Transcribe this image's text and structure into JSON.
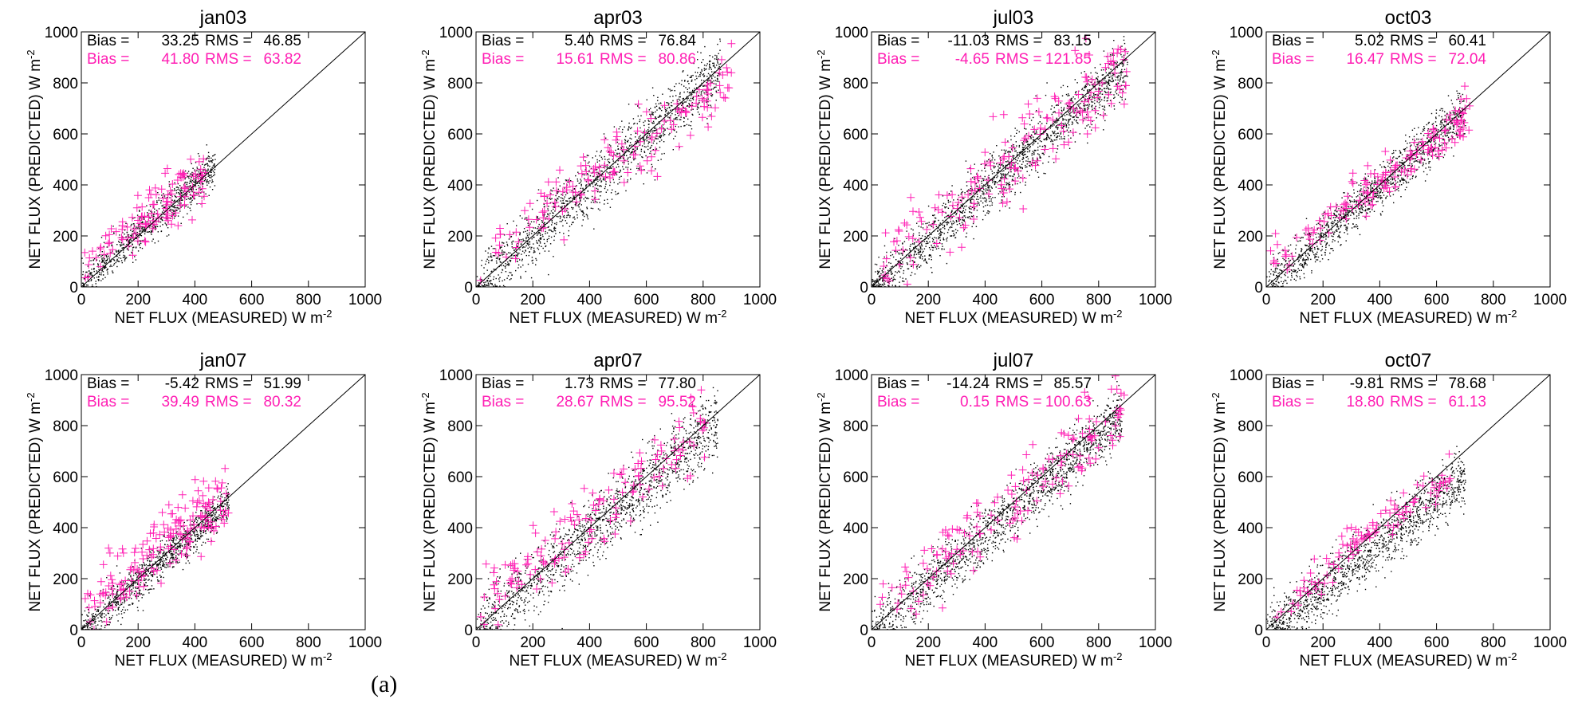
{
  "figure": {
    "caption_mark": "(a)",
    "colors": {
      "all_points": "#000000",
      "subset_points": "#ff1fb4",
      "one_to_one_line": "#000000"
    }
  },
  "chart_data": [
    {
      "type": "scatter",
      "title": "jan03",
      "xlabel": "NET FLUX (MEASURED) W m",
      "xlabel_sup": "-2",
      "ylabel": "NET FLUX (PREDICTED) W m",
      "ylabel_sup": "-2",
      "xlim": [
        0,
        1000
      ],
      "ylim": [
        0,
        1000
      ],
      "ticks": [
        0,
        200,
        400,
        600,
        800,
        1000
      ],
      "grid": false,
      "reference_line": {
        "from": [
          0,
          0
        ],
        "to": [
          1000,
          1000
        ]
      },
      "stats": [
        {
          "bias_label": "Bias =",
          "bias": "33.25",
          "rms_label": "RMS =",
          "rms": "46.85",
          "color": "#000000"
        },
        {
          "bias_label": "Bias =",
          "bias": "41.80",
          "rms_label": "RMS =",
          "rms": "63.82",
          "color": "#ff1fb4"
        }
      ],
      "series": [
        {
          "marker": "dot",
          "color": "#000000",
          "x_range": [
            0,
            470
          ],
          "slope": 1.0,
          "offset": 10,
          "spread": 38,
          "count": 900
        },
        {
          "marker": "plus",
          "color": "#ff1fb4",
          "x_range": [
            10,
            440
          ],
          "slope": 0.85,
          "offset": 75,
          "spread": 55,
          "count": 120
        }
      ]
    },
    {
      "type": "scatter",
      "title": "apr03",
      "xlabel": "NET FLUX (MEASURED) W m",
      "xlabel_sup": "-2",
      "ylabel": "NET FLUX (PREDICTED) W m",
      "ylabel_sup": "-2",
      "xlim": [
        0,
        1000
      ],
      "ylim": [
        0,
        1000
      ],
      "ticks": [
        0,
        200,
        400,
        600,
        800,
        1000
      ],
      "grid": false,
      "reference_line": {
        "from": [
          0,
          0
        ],
        "to": [
          1000,
          1000
        ]
      },
      "stats": [
        {
          "bias_label": "Bias =",
          "bias": "5.40",
          "rms_label": "RMS =",
          "rms": "76.84",
          "color": "#000000"
        },
        {
          "bias_label": "Bias =",
          "bias": "15.61",
          "rms_label": "RMS =",
          "rms": "80.86",
          "color": "#ff1fb4"
        }
      ],
      "series": [
        {
          "marker": "dot",
          "color": "#000000",
          "x_range": [
            0,
            860
          ],
          "slope": 0.98,
          "offset": 5,
          "spread": 60,
          "count": 1500
        },
        {
          "marker": "plus",
          "color": "#ff1fb4",
          "x_range": [
            10,
            900
          ],
          "slope": 0.82,
          "offset": 90,
          "spread": 60,
          "count": 150
        }
      ]
    },
    {
      "type": "scatter",
      "title": "jul03",
      "xlabel": "NET FLUX (MEASURED) W m",
      "xlabel_sup": "-2",
      "ylabel": "NET FLUX (PREDICTED) W m",
      "ylabel_sup": "-2",
      "xlim": [
        0,
        1000
      ],
      "ylim": [
        0,
        1000
      ],
      "ticks": [
        0,
        200,
        400,
        600,
        800,
        1000
      ],
      "grid": false,
      "reference_line": {
        "from": [
          0,
          0
        ],
        "to": [
          1000,
          1000
        ]
      },
      "stats": [
        {
          "bias_label": "Bias =",
          "bias": "-11.03",
          "rms_label": "RMS =",
          "rms": "83.15",
          "color": "#000000"
        },
        {
          "bias_label": "Bias =",
          "bias": "-4.65",
          "rms_label": "RMS =",
          "rms": "121.85",
          "color": "#ff1fb4"
        }
      ],
      "series": [
        {
          "marker": "dot",
          "color": "#000000",
          "x_range": [
            0,
            900
          ],
          "slope": 0.98,
          "offset": -10,
          "spread": 55,
          "count": 1700
        },
        {
          "marker": "plus",
          "color": "#ff1fb4",
          "x_range": [
            20,
            900
          ],
          "slope": 0.9,
          "offset": 60,
          "spread": 85,
          "count": 170
        }
      ]
    },
    {
      "type": "scatter",
      "title": "oct03",
      "xlabel": "NET FLUX (MEASURED) W m",
      "xlabel_sup": "-2",
      "ylabel": "NET FLUX (PREDICTED) W m",
      "ylabel_sup": "-2",
      "xlim": [
        0,
        1000
      ],
      "ylim": [
        0,
        1000
      ],
      "ticks": [
        0,
        200,
        400,
        600,
        800,
        1000
      ],
      "grid": false,
      "reference_line": {
        "from": [
          0,
          0
        ],
        "to": [
          1000,
          1000
        ]
      },
      "stats": [
        {
          "bias_label": "Bias =",
          "bias": "5.02",
          "rms_label": "RMS =",
          "rms": "60.41",
          "color": "#000000"
        },
        {
          "bias_label": "Bias =",
          "bias": "16.47",
          "rms_label": "RMS =",
          "rms": "72.04",
          "color": "#ff1fb4"
        }
      ],
      "series": [
        {
          "marker": "dot",
          "color": "#000000",
          "x_range": [
            0,
            700
          ],
          "slope": 0.97,
          "offset": 8,
          "spread": 45,
          "count": 1300
        },
        {
          "marker": "plus",
          "color": "#ff1fb4",
          "x_range": [
            10,
            720
          ],
          "slope": 0.85,
          "offset": 75,
          "spread": 45,
          "count": 150
        }
      ]
    },
    {
      "type": "scatter",
      "title": "jan07",
      "xlabel": "NET FLUX (MEASURED) W m",
      "xlabel_sup": "-2",
      "ylabel": "NET FLUX (PREDICTED) W m",
      "ylabel_sup": "-2",
      "xlim": [
        0,
        1000
      ],
      "ylim": [
        0,
        1000
      ],
      "ticks": [
        0,
        200,
        400,
        600,
        800,
        1000
      ],
      "grid": false,
      "reference_line": {
        "from": [
          0,
          0
        ],
        "to": [
          1000,
          1000
        ]
      },
      "stats": [
        {
          "bias_label": "Bias =",
          "bias": "-5.42",
          "rms_label": "RMS =",
          "rms": "51.99",
          "color": "#000000"
        },
        {
          "bias_label": "Bias =",
          "bias": "39.49",
          "rms_label": "RMS =",
          "rms": "80.32",
          "color": "#ff1fb4"
        }
      ],
      "series": [
        {
          "marker": "dot",
          "color": "#000000",
          "x_range": [
            0,
            520
          ],
          "slope": 0.98,
          "offset": -5,
          "spread": 38,
          "count": 1100
        },
        {
          "marker": "plus",
          "color": "#ff1fb4",
          "x_range": [
            10,
            520
          ],
          "slope": 0.9,
          "offset": 70,
          "spread": 60,
          "count": 170
        }
      ]
    },
    {
      "type": "scatter",
      "title": "apr07",
      "xlabel": "NET FLUX (MEASURED) W m",
      "xlabel_sup": "-2",
      "ylabel": "NET FLUX (PREDICTED) W m",
      "ylabel_sup": "-2",
      "xlim": [
        0,
        1000
      ],
      "ylim": [
        0,
        1000
      ],
      "ticks": [
        0,
        200,
        400,
        600,
        800,
        1000
      ],
      "grid": false,
      "reference_line": {
        "from": [
          0,
          0
        ],
        "to": [
          1000,
          1000
        ]
      },
      "stats": [
        {
          "bias_label": "Bias =",
          "bias": "1.73",
          "rms_label": "RMS =",
          "rms": "77.80",
          "color": "#000000"
        },
        {
          "bias_label": "Bias =",
          "bias": "28.67",
          "rms_label": "RMS =",
          "rms": "95.52",
          "color": "#ff1fb4"
        }
      ],
      "series": [
        {
          "marker": "dot",
          "color": "#000000",
          "x_range": [
            0,
            850
          ],
          "slope": 0.96,
          "offset": 0,
          "spread": 65,
          "count": 1500
        },
        {
          "marker": "plus",
          "color": "#ff1fb4",
          "x_range": [
            10,
            820
          ],
          "slope": 0.88,
          "offset": 90,
          "spread": 70,
          "count": 150
        }
      ]
    },
    {
      "type": "scatter",
      "title": "jul07",
      "xlabel": "NET FLUX (MEASURED) W m",
      "xlabel_sup": "-2",
      "ylabel": "NET FLUX (PREDICTED) W m",
      "ylabel_sup": "-2",
      "xlim": [
        0,
        1000
      ],
      "ylim": [
        0,
        1000
      ],
      "ticks": [
        0,
        200,
        400,
        600,
        800,
        1000
      ],
      "grid": false,
      "reference_line": {
        "from": [
          0,
          0
        ],
        "to": [
          1000,
          1000
        ]
      },
      "stats": [
        {
          "bias_label": "Bias =",
          "bias": "-14.24",
          "rms_label": "RMS =",
          "rms": "85.57",
          "color": "#000000"
        },
        {
          "bias_label": "Bias =",
          "bias": "0.15",
          "rms_label": "RMS =",
          "rms": "100.63",
          "color": "#ff1fb4"
        }
      ],
      "series": [
        {
          "marker": "dot",
          "color": "#000000",
          "x_range": [
            0,
            880
          ],
          "slope": 0.97,
          "offset": -12,
          "spread": 55,
          "count": 1600
        },
        {
          "marker": "plus",
          "color": "#ff1fb4",
          "x_range": [
            20,
            900
          ],
          "slope": 0.9,
          "offset": 60,
          "spread": 70,
          "count": 150
        }
      ]
    },
    {
      "type": "scatter",
      "title": "oct07",
      "xlabel": "NET FLUX (MEASURED) W m",
      "xlabel_sup": "-2",
      "ylabel": "NET FLUX (PREDICTED) W m",
      "ylabel_sup": "-2",
      "xlim": [
        0,
        1000
      ],
      "ylim": [
        0,
        1000
      ],
      "ticks": [
        0,
        200,
        400,
        600,
        800,
        1000
      ],
      "grid": false,
      "reference_line": {
        "from": [
          0,
          0
        ],
        "to": [
          1000,
          1000
        ]
      },
      "stats": [
        {
          "bias_label": "Bias =",
          "bias": "-9.81",
          "rms_label": "RMS =",
          "rms": "78.68",
          "color": "#000000"
        },
        {
          "bias_label": "Bias =",
          "bias": "18.80",
          "rms_label": "RMS =",
          "rms": "61.13",
          "color": "#ff1fb4"
        }
      ],
      "series": [
        {
          "marker": "dot",
          "color": "#000000",
          "x_range": [
            0,
            700
          ],
          "slope": 0.86,
          "offset": -5,
          "spread": 55,
          "count": 1400
        },
        {
          "marker": "plus",
          "color": "#ff1fb4",
          "x_range": [
            10,
            660
          ],
          "slope": 0.85,
          "offset": 60,
          "spread": 40,
          "count": 100
        }
      ]
    }
  ]
}
